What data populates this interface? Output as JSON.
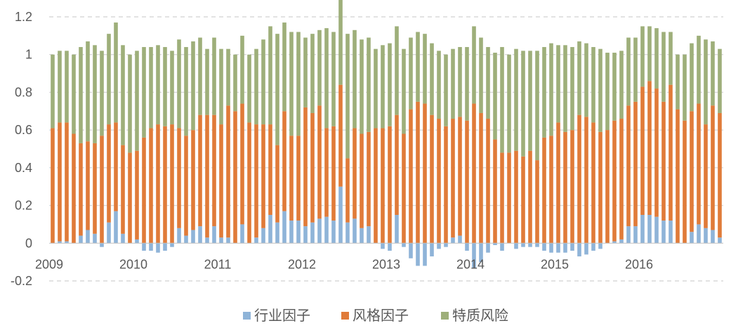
{
  "colors": {
    "industry": "#8FB4D8",
    "style": "#E07B39",
    "idio": "#9EAF7A",
    "grid": "#D9D9D9",
    "text": "#595959"
  },
  "chart_data": {
    "type": "bar",
    "stacked": true,
    "grid": true,
    "legend_position": "bottom",
    "ylim": [
      -0.2,
      1.2
    ],
    "y_ticks": [
      -0.2,
      0,
      0.2,
      0.4,
      0.6,
      0.8,
      1,
      1.2
    ],
    "y_tick_labels": [
      "-0.2",
      "0",
      "0.2",
      "0.4",
      "0.6",
      "0.8",
      "1",
      "1.2"
    ],
    "x_tick_labels": [
      "2009",
      "2010",
      "2011",
      "2012",
      "2013",
      "2014",
      "2015",
      "2016"
    ],
    "x_tick_index": [
      0,
      12,
      24,
      36,
      48,
      60,
      72,
      84
    ],
    "series": [
      {
        "name": "行业因子",
        "color": "#8FB4D8",
        "values": [
          0.0,
          0.01,
          0.01,
          0.0,
          0.04,
          0.07,
          0.05,
          -0.02,
          0.11,
          0.17,
          0.05,
          0.0,
          0.02,
          -0.04,
          -0.04,
          -0.05,
          -0.04,
          -0.02,
          0.08,
          0.04,
          0.07,
          0.09,
          0.03,
          0.09,
          0.03,
          0.03,
          0.0,
          0.1,
          0.0,
          0.03,
          0.08,
          0.15,
          0.11,
          0.17,
          0.12,
          0.12,
          0.09,
          0.11,
          0.13,
          0.14,
          0.12,
          0.3,
          0.11,
          0.13,
          0.08,
          0.09,
          0.0,
          -0.03,
          -0.04,
          0.15,
          -0.02,
          -0.08,
          -0.12,
          -0.12,
          -0.07,
          -0.03,
          -0.02,
          0.03,
          0.04,
          -0.04,
          -0.13,
          -0.1,
          -0.05,
          -0.01,
          -0.04,
          0.0,
          -0.03,
          -0.02,
          -0.02,
          -0.02,
          -0.04,
          -0.05,
          -0.05,
          -0.05,
          -0.04,
          -0.07,
          -0.06,
          -0.04,
          -0.03,
          0.0,
          0.01,
          0.02,
          0.09,
          0.09,
          0.15,
          0.15,
          0.14,
          0.12,
          0.12,
          0.0,
          0.0,
          0.06,
          0.1,
          0.08,
          0.07,
          0.03
        ]
      },
      {
        "name": "风格因子",
        "color": "#E07B39",
        "values": [
          0.61,
          0.63,
          0.63,
          0.58,
          0.49,
          0.47,
          0.48,
          0.57,
          0.52,
          0.47,
          0.47,
          0.48,
          0.47,
          0.56,
          0.61,
          0.63,
          0.62,
          0.63,
          0.53,
          0.53,
          0.53,
          0.59,
          0.65,
          0.59,
          0.6,
          0.7,
          0.7,
          0.64,
          0.64,
          0.6,
          0.55,
          0.48,
          0.41,
          0.53,
          0.45,
          0.45,
          0.63,
          0.58,
          0.6,
          0.47,
          0.5,
          0.54,
          0.34,
          0.48,
          0.5,
          0.5,
          0.61,
          0.61,
          0.62,
          0.53,
          0.58,
          0.71,
          0.75,
          0.74,
          0.68,
          0.66,
          0.62,
          0.63,
          0.63,
          0.65,
          0.74,
          0.69,
          0.66,
          0.55,
          0.48,
          0.48,
          0.49,
          0.46,
          0.49,
          0.44,
          0.56,
          0.57,
          0.64,
          0.59,
          0.6,
          0.68,
          0.67,
          0.64,
          0.59,
          0.6,
          0.64,
          0.64,
          0.64,
          0.66,
          0.68,
          0.71,
          0.68,
          0.63,
          0.72,
          0.71,
          0.65,
          0.64,
          0.64,
          0.55,
          0.66,
          0.66
        ]
      },
      {
        "name": "特质风险",
        "color": "#9EAF7A",
        "values": [
          0.39,
          0.38,
          0.38,
          0.42,
          0.51,
          0.53,
          0.52,
          0.45,
          0.48,
          0.53,
          0.53,
          0.52,
          0.53,
          0.48,
          0.43,
          0.42,
          0.42,
          0.39,
          0.47,
          0.47,
          0.47,
          0.41,
          0.35,
          0.41,
          0.4,
          0.3,
          0.3,
          0.36,
          0.36,
          0.4,
          0.45,
          0.52,
          0.59,
          0.47,
          0.55,
          0.55,
          0.37,
          0.42,
          0.4,
          0.53,
          0.5,
          0.46,
          0.66,
          0.52,
          0.5,
          0.5,
          0.42,
          0.44,
          0.44,
          0.47,
          0.45,
          0.38,
          0.37,
          0.37,
          0.38,
          0.36,
          0.38,
          0.37,
          0.37,
          0.39,
          0.41,
          0.4,
          0.38,
          0.46,
          0.56,
          0.52,
          0.54,
          0.56,
          0.53,
          0.58,
          0.48,
          0.49,
          0.41,
          0.46,
          0.44,
          0.39,
          0.39,
          0.4,
          0.44,
          0.41,
          0.36,
          0.36,
          0.36,
          0.34,
          0.32,
          0.29,
          0.32,
          0.37,
          0.28,
          0.29,
          0.35,
          0.36,
          0.36,
          0.45,
          0.34,
          0.34
        ]
      }
    ]
  }
}
